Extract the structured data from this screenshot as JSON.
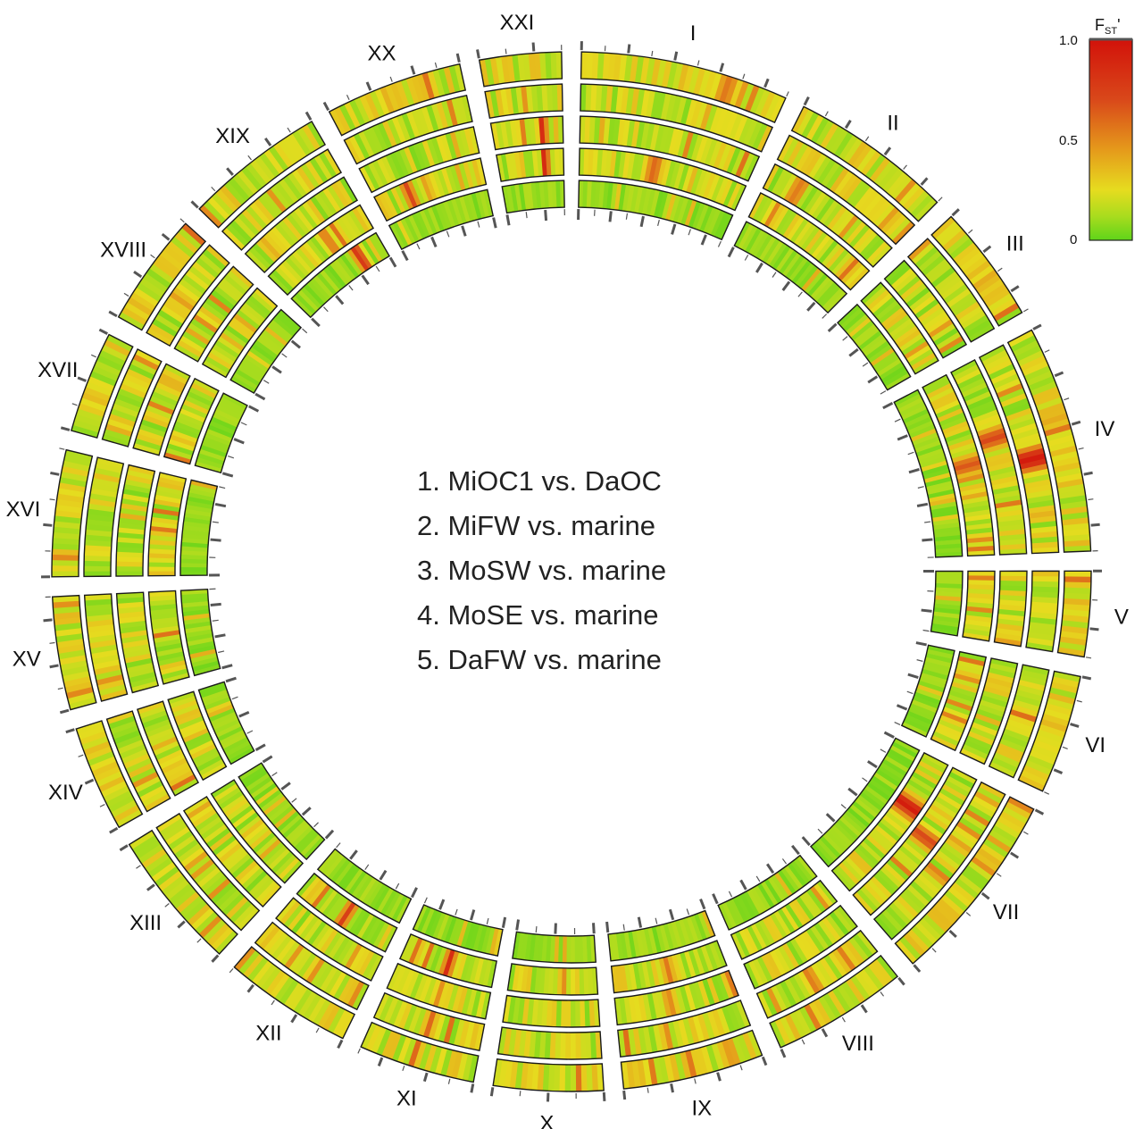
{
  "chart_data": {
    "type": "heatmap",
    "layout": "circular",
    "chromosomes": [
      {
        "label": "I",
        "size": 29.8
      },
      {
        "label": "II",
        "size": 23.3
      },
      {
        "label": "III",
        "size": 16.9
      },
      {
        "label": "IV",
        "size": 32.6
      },
      {
        "label": "V",
        "size": 12.2
      },
      {
        "label": "VI",
        "size": 17.1
      },
      {
        "label": "VII",
        "size": 27.9
      },
      {
        "label": "VIII",
        "size": 19.4
      },
      {
        "label": "IX",
        "size": 20.2
      },
      {
        "label": "X",
        "size": 15.7
      },
      {
        "label": "XI",
        "size": 16.7
      },
      {
        "label": "XII",
        "size": 18.4
      },
      {
        "label": "XIII",
        "size": 20.1
      },
      {
        "label": "XIV",
        "size": 15.2
      },
      {
        "label": "XV",
        "size": 16.2
      },
      {
        "label": "XVI",
        "size": 18.1
      },
      {
        "label": "XVII",
        "size": 14.6
      },
      {
        "label": "XVIII",
        "size": 16.3
      },
      {
        "label": "XIX",
        "size": 20.2
      },
      {
        "label": "XX",
        "size": 19.7
      },
      {
        "label": "XXI",
        "size": 11.7
      }
    ],
    "tracks": [
      "1. MiOC1 vs. DaOC",
      "2. MiFW vs. marine",
      "3. MoSW vs. marine",
      "4. MoSE vs. marine",
      "5. DaFW vs. marine"
    ],
    "colorscale": {
      "title": "F",
      "title_sub": "ST",
      "title_suffix": "'",
      "range": [
        0,
        1.0
      ],
      "ticks": [
        "0",
        "0.5",
        "1.0"
      ],
      "colors": [
        "#5fd41a",
        "#9fdb1e",
        "#e9e01f",
        "#e6a01c",
        "#da5414",
        "#d31f0c"
      ]
    },
    "peaks": [
      {
        "chrom": "I",
        "pos": 0.72,
        "track": 1,
        "value": 0.55
      },
      {
        "chrom": "I",
        "pos": 0.45,
        "track": 4,
        "value": 0.6
      },
      {
        "chrom": "XXI",
        "pos": 0.7,
        "track": 3,
        "value": 0.85
      },
      {
        "chrom": "XXI",
        "pos": 0.72,
        "track": 4,
        "value": 0.95
      },
      {
        "chrom": "XX",
        "pos": 0.3,
        "track": 4,
        "value": 0.7
      },
      {
        "chrom": "XIX",
        "pos": 0.6,
        "track": 4,
        "value": 0.55
      },
      {
        "chrom": "XIX",
        "pos": 0.75,
        "track": 5,
        "value": 0.8
      },
      {
        "chrom": "IV",
        "pos": 0.4,
        "track": 1,
        "value": 0.4
      },
      {
        "chrom": "IV",
        "pos": 0.55,
        "track": 2,
        "value": 0.95
      },
      {
        "chrom": "IV",
        "pos": 0.4,
        "track": 3,
        "value": 0.7
      },
      {
        "chrom": "IV",
        "pos": 0.5,
        "track": 4,
        "value": 0.65
      },
      {
        "chrom": "VII",
        "pos": 0.35,
        "track": 4,
        "value": 0.95
      },
      {
        "chrom": "VII",
        "pos": 0.45,
        "track": 3,
        "value": 0.7
      },
      {
        "chrom": "VIII",
        "pos": 0.55,
        "track": 2,
        "value": 0.55
      },
      {
        "chrom": "IX",
        "pos": 0.55,
        "track": 3,
        "value": 0.5
      },
      {
        "chrom": "IX",
        "pos": 0.5,
        "track": 4,
        "value": 0.55
      },
      {
        "chrom": "XI",
        "pos": 0.5,
        "track": 4,
        "value": 0.85
      },
      {
        "chrom": "XI",
        "pos": 0.5,
        "track": 2,
        "value": 0.6
      },
      {
        "chrom": "XII",
        "pos": 0.5,
        "track": 4,
        "value": 0.75
      }
    ]
  }
}
